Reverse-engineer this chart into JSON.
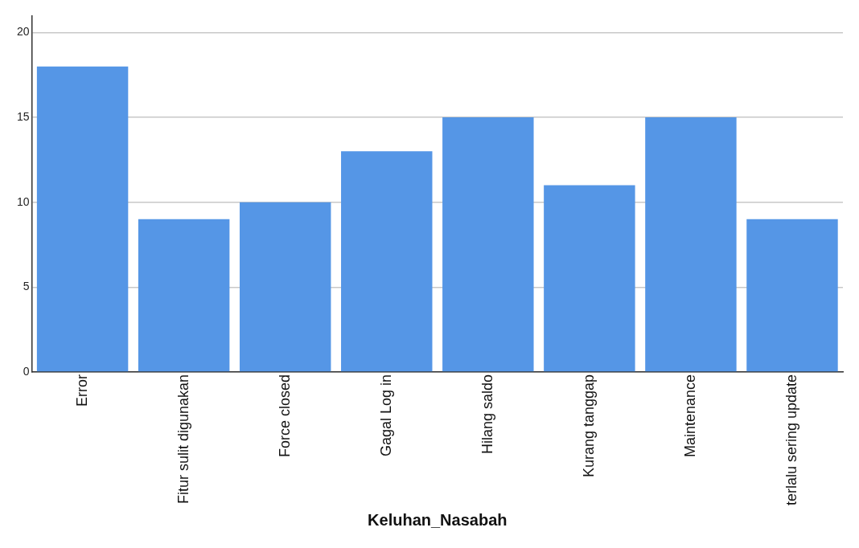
{
  "chart_data": {
    "type": "bar",
    "xlabel": "Keluhan_Nasabah",
    "categories": [
      "Error",
      "Fitur sulit digunakan",
      "Force closed",
      "Gagal Log in",
      "Hilang saldo",
      "Kurang tanggap",
      "Maintenance",
      "terlalu sering update"
    ],
    "values": [
      18,
      9,
      10,
      13,
      15,
      11,
      15,
      9
    ],
    "color": "#5596e6",
    "ylim": [
      0,
      21
    ],
    "yticks": [
      0,
      5,
      10,
      15,
      20
    ],
    "grid": "y"
  }
}
